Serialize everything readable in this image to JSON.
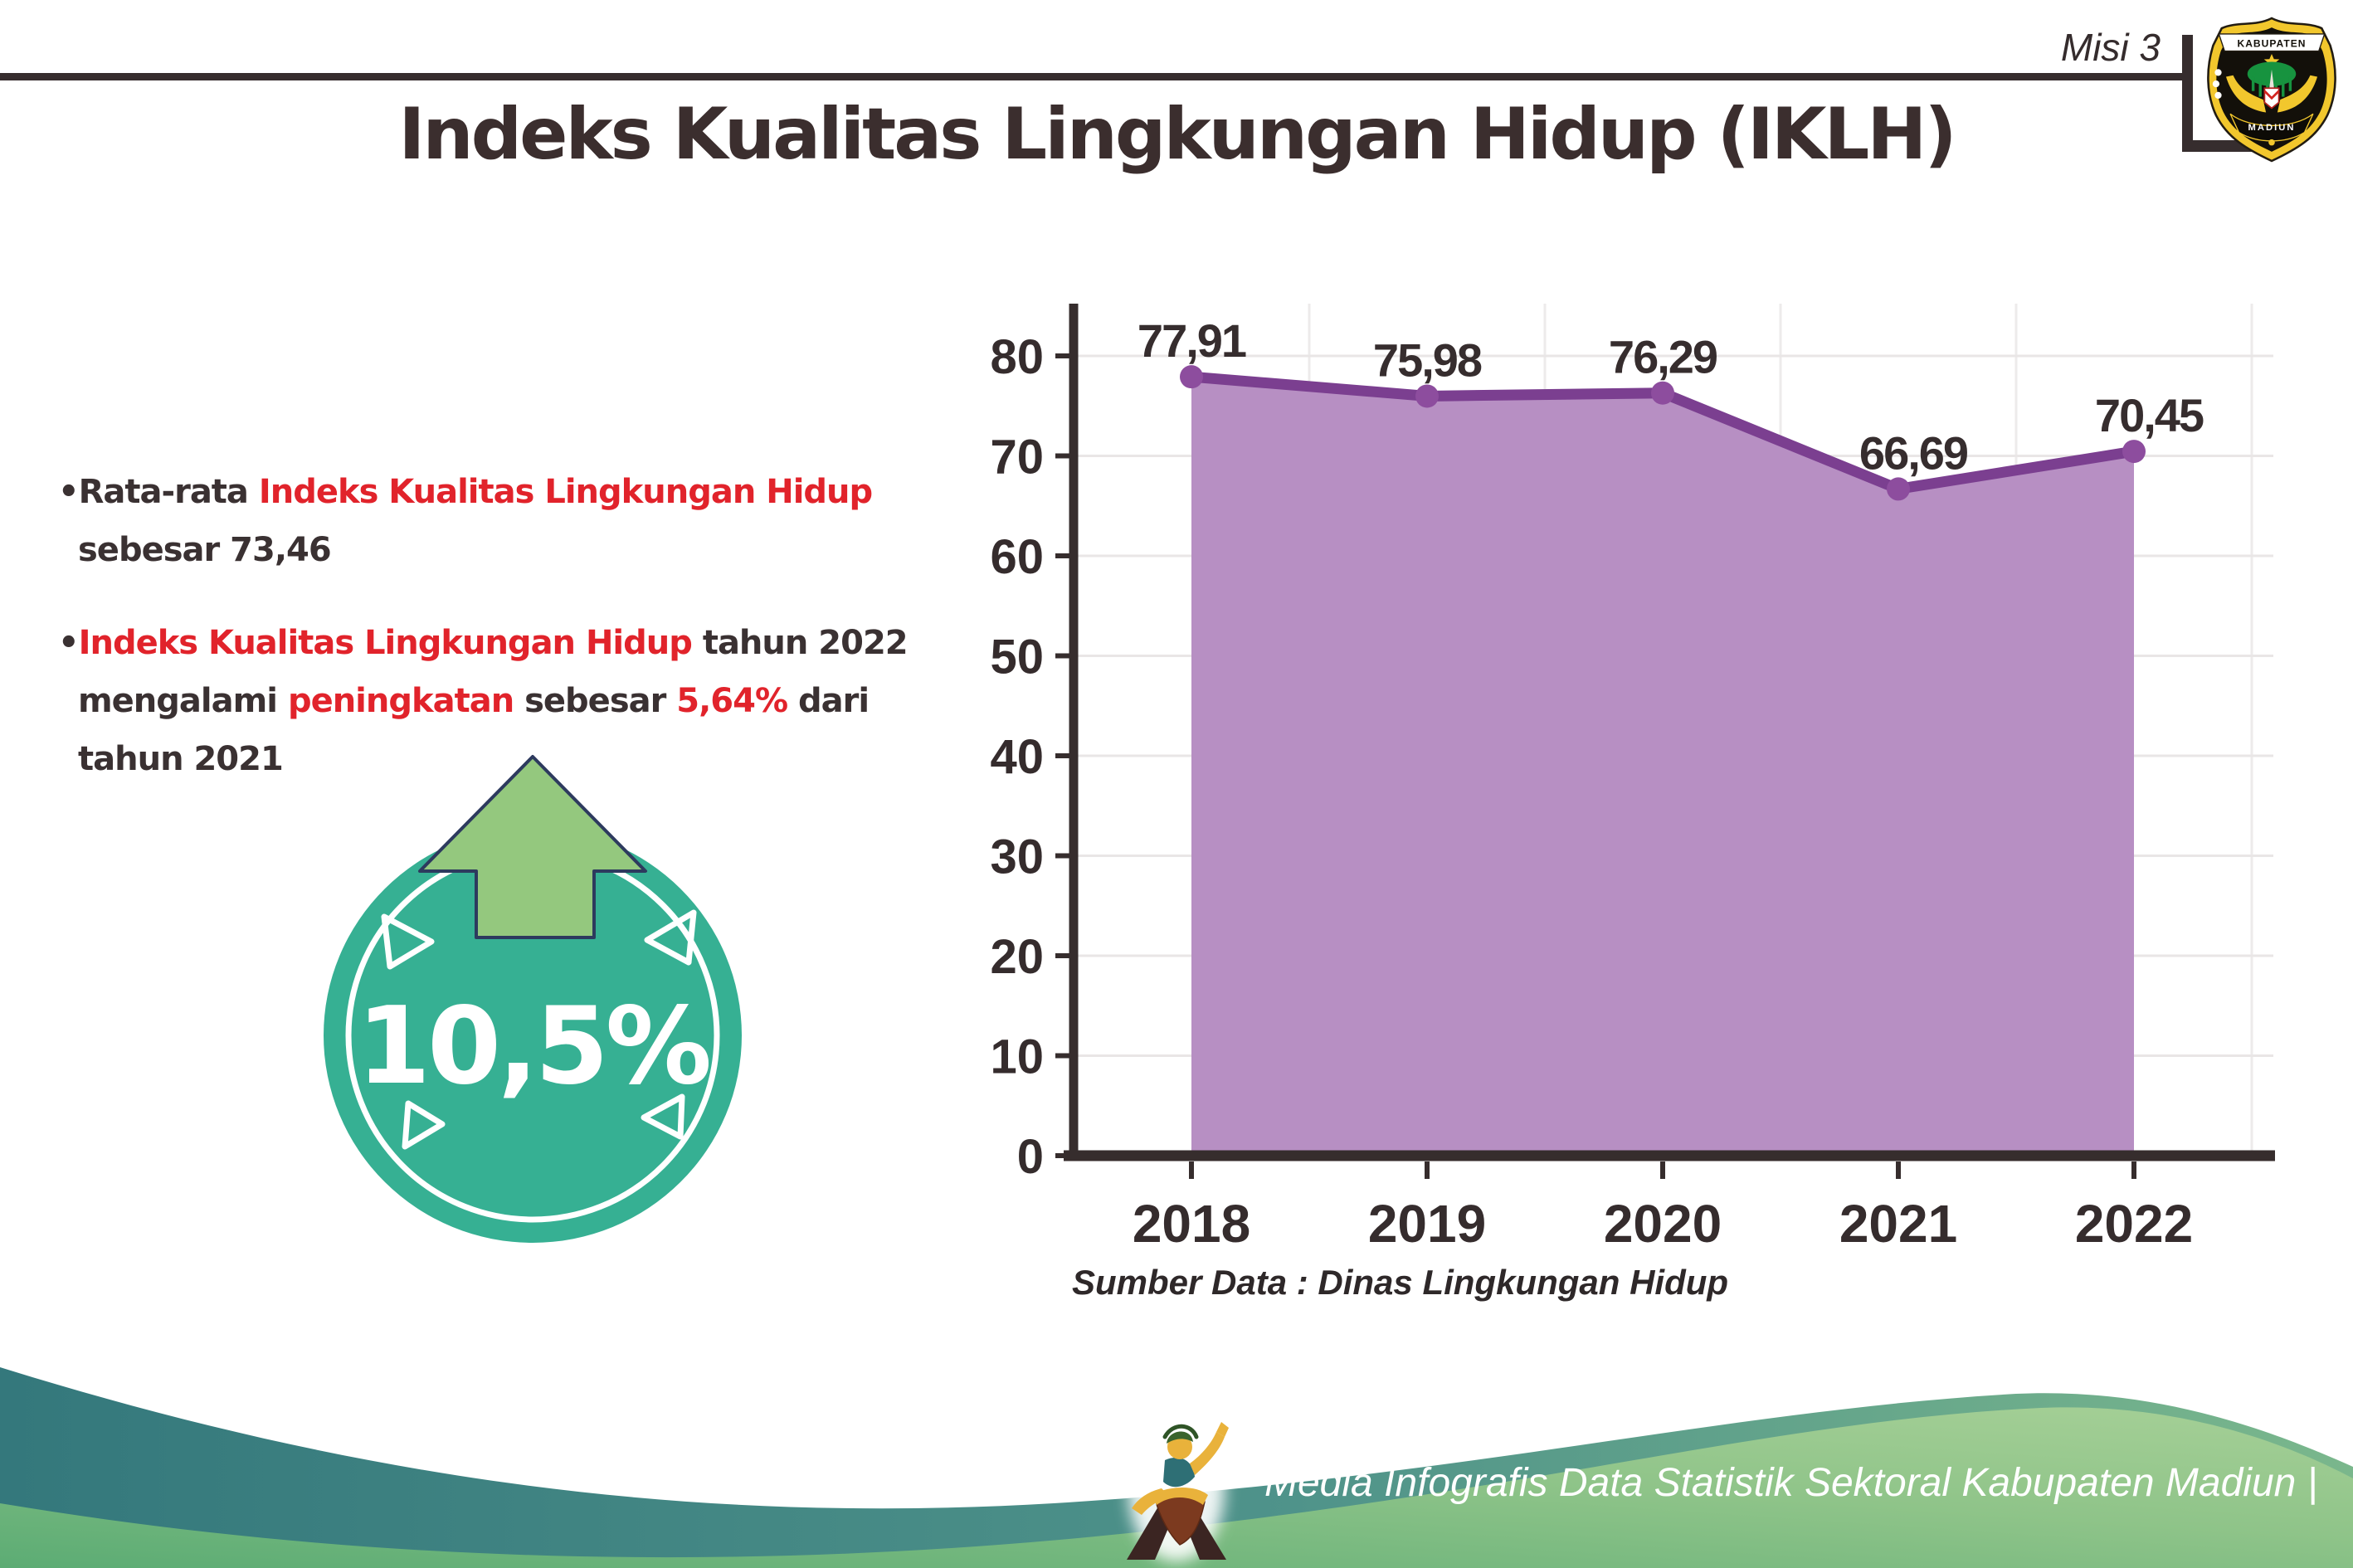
{
  "header": {
    "misi": "Misi 3",
    "logo_top": "KABUPATEN",
    "logo_bottom": "MADIUN"
  },
  "title": "Indeks Kualitas Lingkungan Hidup (IKLH)",
  "bullets": [
    {
      "segments": [
        {
          "t": "Rata-rata ",
          "red": false
        },
        {
          "t": "Indeks Kualitas Lingkungan Hidup",
          "red": true
        },
        {
          "t": " sebesar 73,46",
          "red": false
        }
      ]
    },
    {
      "segments": [
        {
          "t": "Indeks Kualitas Lingkungan Hidup",
          "red": true
        },
        {
          "t": " tahun 2022 mengalami ",
          "red": false
        },
        {
          "t": "peningkatan",
          "red": true
        },
        {
          "t": " sebesar ",
          "red": false
        },
        {
          "t": "5,64%",
          "red": true
        },
        {
          "t": " dari tahun 2021",
          "red": false
        }
      ]
    }
  ],
  "badge": {
    "value": "10,5%",
    "direction": "up"
  },
  "chart_data": {
    "type": "area",
    "categories": [
      "2018",
      "2019",
      "2020",
      "2021",
      "2022"
    ],
    "series": [
      {
        "name": "IKLH",
        "values": [
          77.91,
          75.98,
          76.29,
          66.69,
          70.45
        ]
      }
    ],
    "value_labels": [
      "77,91",
      "75,98",
      "76,29",
      "66,69",
      "70,45"
    ],
    "ylim": [
      0,
      85
    ],
    "yticks": [
      0,
      10,
      20,
      30,
      40,
      50,
      60,
      70,
      80
    ],
    "grid": true,
    "legend": false,
    "title": "",
    "xlabel": "",
    "ylabel": "",
    "source_label": "Sumber Data : Dinas Lingkungan Hidup"
  },
  "footer": {
    "text": "Media Infografis Data Statistik Sektoral Kabupaten Madiun |"
  },
  "colors": {
    "red": "#e1232b",
    "dark_text": "#3a3132",
    "axis": "#362d2d",
    "grid": "#e9e6e6",
    "area_fill": "#b78fc3",
    "line": "#7b3f90",
    "dot": "#8d4d9e",
    "badge_teal": "#36b093",
    "arrow_green": "#94c87e",
    "arrow_outline": "#2d3a5e",
    "footer_teal_dark": "#34787c",
    "footer_teal_light": "#7ab78c",
    "footer_green_dark": "#5cac74",
    "footer_green_light": "#a6d097"
  }
}
